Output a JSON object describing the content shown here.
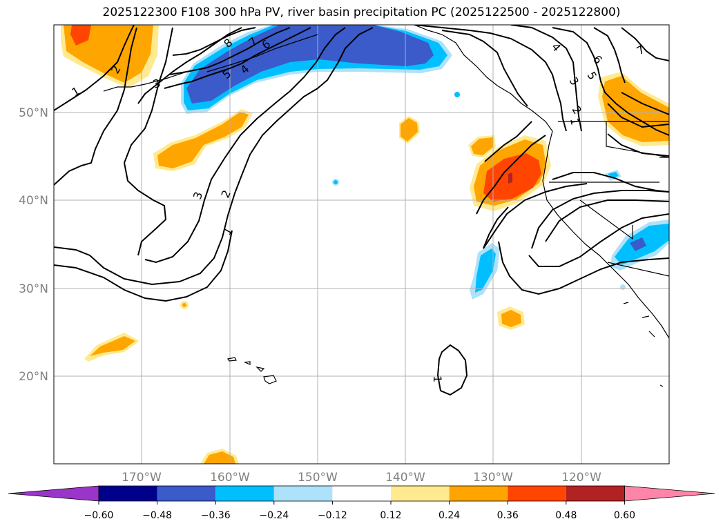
{
  "title": "2025122300 F108 300 hPa PV, river basin precipitation PC (2025122500 - 2025122800)",
  "map": {
    "lat_labels": [
      "50°N",
      "40°N",
      "30°N",
      "20°N"
    ],
    "lon_labels": [
      "170°W",
      "160°W",
      "150°W",
      "140°W",
      "130°W",
      "120°W"
    ],
    "contour_labels": [
      "1",
      "2",
      "3",
      "4",
      "5",
      "6",
      "7",
      "8",
      "1",
      "2",
      "3",
      "1",
      "2",
      "3",
      "4",
      "5",
      "6",
      "7",
      "1"
    ]
  },
  "colorbar": {
    "ticks": [
      "−0.60",
      "−0.48",
      "−0.36",
      "−0.24",
      "−0.12",
      "0.12",
      "0.24",
      "0.36",
      "0.48",
      "0.60"
    ],
    "colors": [
      "#9a35c9",
      "#00008b",
      "#3a5bc9",
      "#00bfff",
      "#aee2fa",
      "#ffffff",
      "#ffea90",
      "#ffa500",
      "#ff4500",
      "#b22222",
      "#ff85a8"
    ]
  },
  "palette": {
    "light_yellow": "#ffea90",
    "orange": "#ffa500",
    "red_orange": "#ff4500",
    "dark_red": "#b22222",
    "light_blue": "#aee2fa",
    "sky_blue": "#00bfff",
    "royal_blue": "#3a5bc9",
    "grid": "#b0b0b0",
    "axis_label": "#808080"
  }
}
